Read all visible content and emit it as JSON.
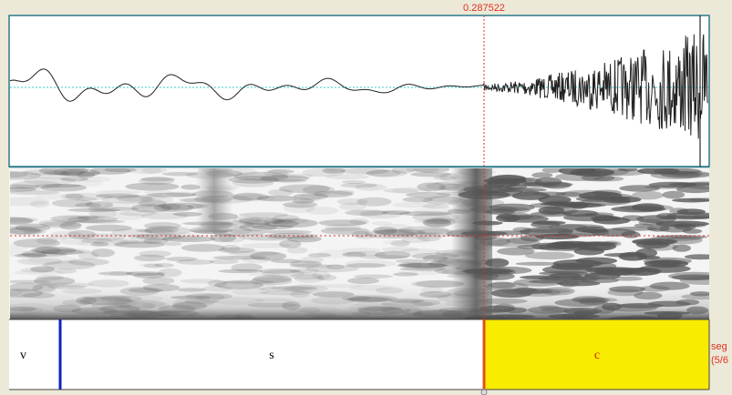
{
  "cursor_time": "0.287522",
  "tier": {
    "name": "seg",
    "count": "(5/6"
  },
  "intervals": [
    {
      "label": "v"
    },
    {
      "label": "s"
    },
    {
      "label": "c"
    }
  ]
}
